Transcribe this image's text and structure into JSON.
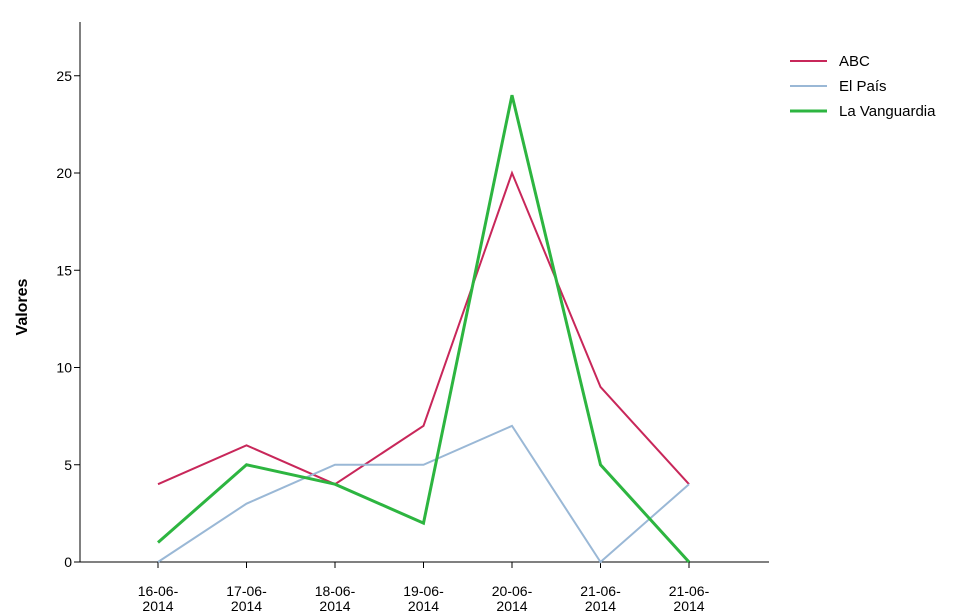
{
  "chart_data": {
    "type": "line",
    "title": "",
    "xlabel": "",
    "ylabel": "Valores",
    "categories": [
      "16-06-2014",
      "17-06-2014",
      "18-06-2014",
      "19-06-2014",
      "20-06-2014",
      "21-06-2014",
      "21-06-2014"
    ],
    "category_lines": [
      [
        "16-06-",
        "2014"
      ],
      [
        "17-06-",
        "2014"
      ],
      [
        "18-06-",
        "2014"
      ],
      [
        "19-06-",
        "2014"
      ],
      [
        "20-06-",
        "2014"
      ],
      [
        "21-06-",
        "2014"
      ],
      [
        "21-06-",
        "2014"
      ]
    ],
    "ylim": [
      0,
      28
    ],
    "yticks": [
      0,
      5,
      10,
      15,
      20,
      25
    ],
    "ytick_labels": [
      "0",
      "5",
      "10",
      "15",
      "20",
      "25"
    ],
    "grid": false,
    "legend_position": "top-right",
    "series": [
      {
        "name": "ABC",
        "color": "#c8275a",
        "values": [
          4,
          6,
          4,
          7,
          20,
          9,
          4
        ]
      },
      {
        "name": "El País",
        "color": "#9ab8d6",
        "values": [
          0,
          3,
          5,
          5,
          7,
          0,
          4
        ]
      },
      {
        "name": "La Vanguardia",
        "color": "#2db540",
        "values": [
          1,
          5,
          4,
          2,
          24,
          5,
          0
        ]
      }
    ]
  }
}
